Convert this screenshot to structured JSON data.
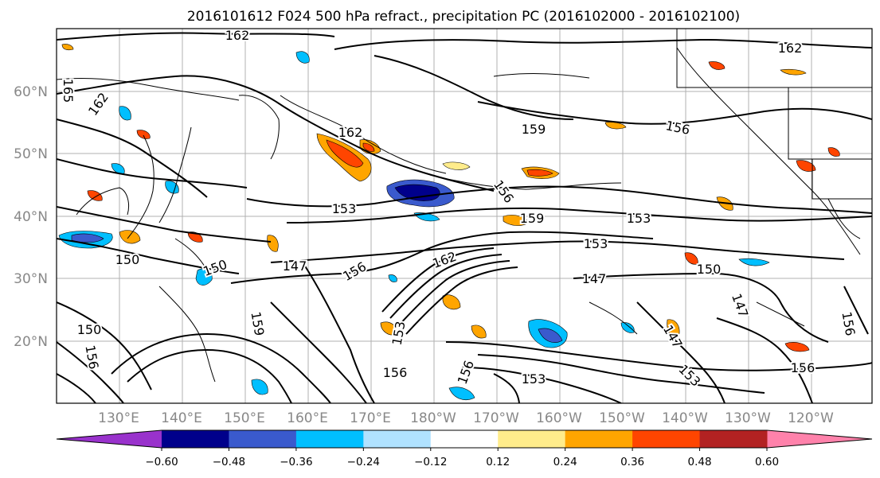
{
  "title": "2016101612 F024 500 hPa refract., precipitation PC (2016102000 - 2016102100)",
  "lat_labels": [
    "60°N",
    "50°N",
    "40°N",
    "30°N",
    "20°N"
  ],
  "lon_labels": [
    "130°E",
    "140°E",
    "150°E",
    "160°E",
    "170°E",
    "180°W",
    "170°W",
    "160°W",
    "150°W",
    "140°W",
    "130°W",
    "120°W"
  ],
  "colorbar": {
    "ticks": [
      "−0.60",
      "−0.48",
      "−0.36",
      "−0.24",
      "−0.12",
      "0.12",
      "0.24",
      "0.36",
      "0.48",
      "0.60"
    ],
    "colors": [
      "#9932cc",
      "#00008b",
      "#3a5acd",
      "#00bfff",
      "#b0e2ff",
      "#ffffff",
      "#ffec8b",
      "#ffa500",
      "#ff4500",
      "#b22222",
      "#ff82ab"
    ]
  },
  "contour_labels": [
    "162",
    "162",
    "162",
    "165",
    "162",
    "159",
    "156",
    "156",
    "153",
    "159",
    "153",
    "153",
    "150",
    "147",
    "147",
    "156",
    "162",
    "150",
    "150",
    "147",
    "150",
    "156",
    "153",
    "153",
    "156",
    "156",
    "153",
    "156",
    "159",
    "147",
    "156"
  ]
}
